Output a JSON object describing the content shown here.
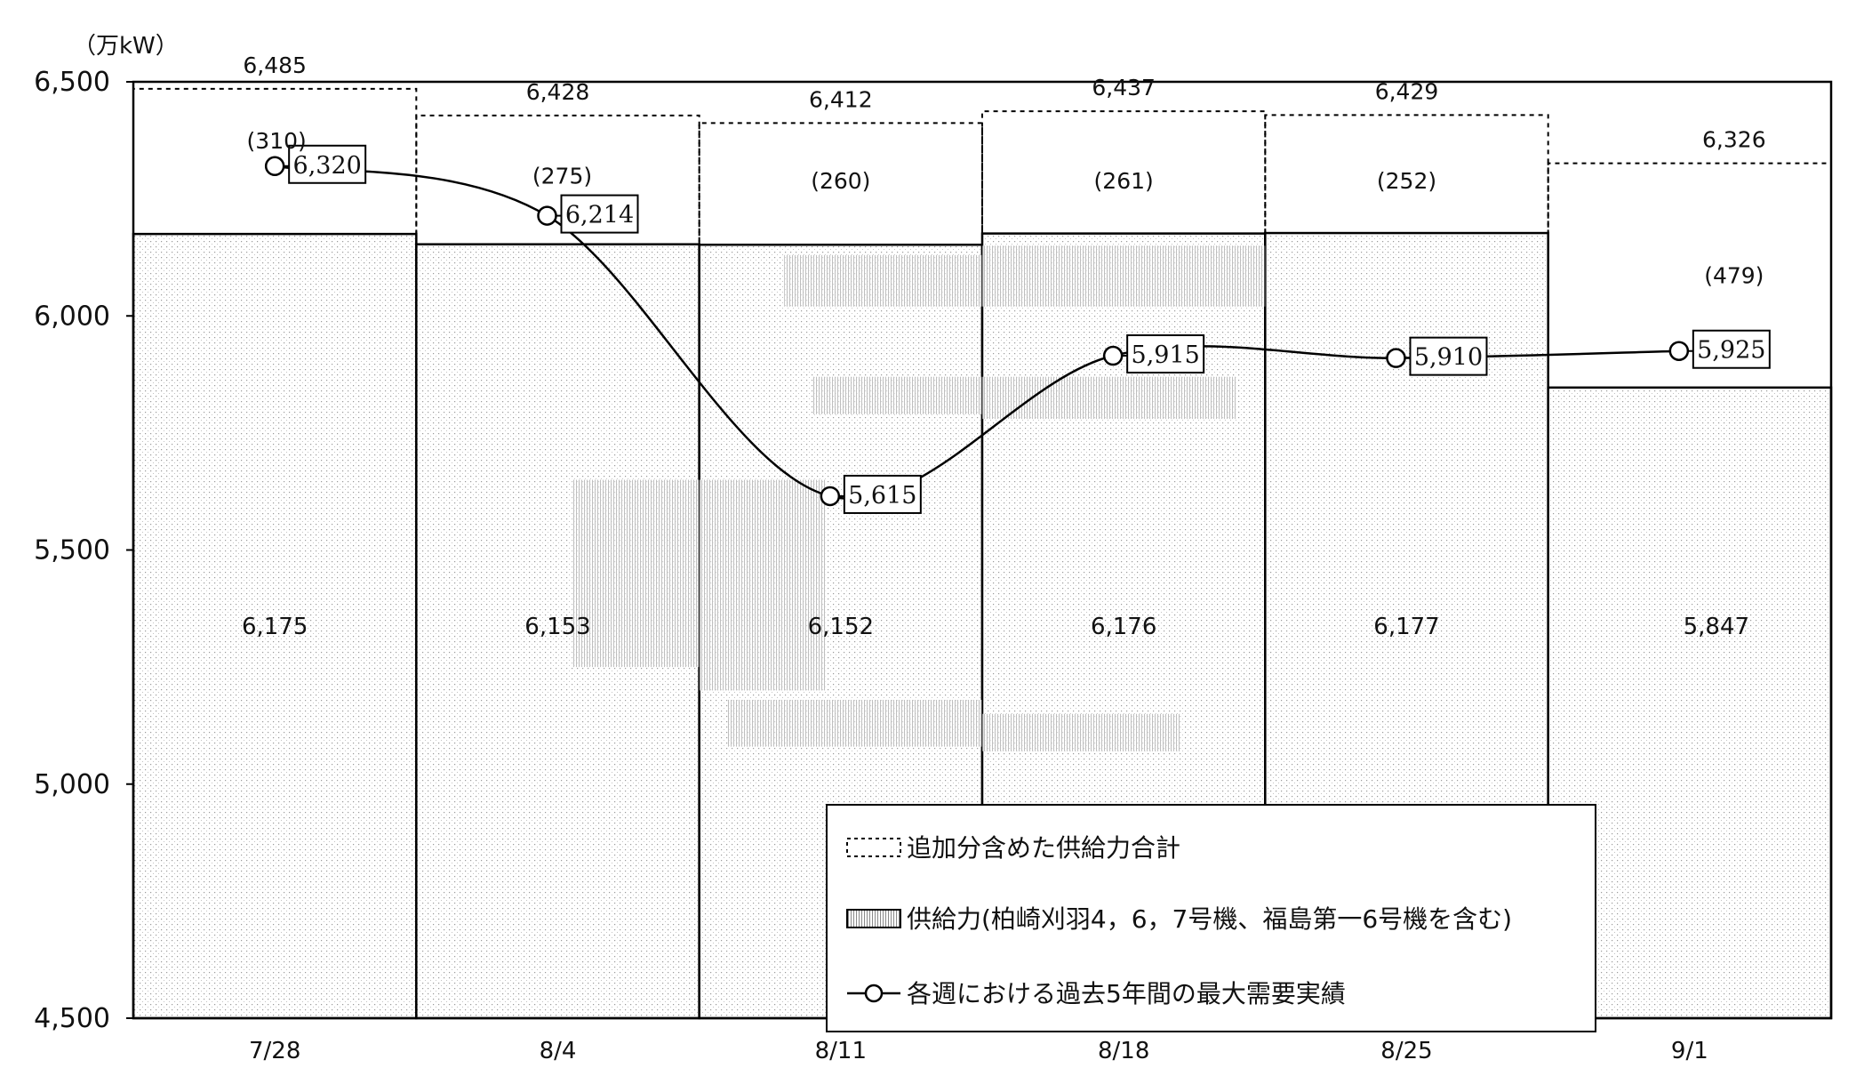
{
  "chart_data": {
    "type": "bar",
    "unit_label": "（万kW）",
    "categories": [
      "7/28",
      "8/4",
      "8/11",
      "8/18",
      "8/25",
      "9/1"
    ],
    "ylim": [
      4500,
      6500
    ],
    "yticks": [
      4500,
      5000,
      5500,
      6000,
      6500
    ],
    "ytick_labels": [
      "4,500",
      "5,000",
      "5,500",
      "6,000",
      "6,500"
    ],
    "supply_values": [
      6175,
      6153,
      6152,
      6176,
      6177,
      5847
    ],
    "supply_labels": [
      "6,175",
      "6,153",
      "6,152",
      "6,176",
      "6,177",
      "5,847"
    ],
    "total_values": [
      6485,
      6428,
      6412,
      6437,
      6429,
      6326
    ],
    "total_labels": [
      "6,485",
      "6,428",
      "6,412",
      "6,437",
      "6,429",
      "6,326"
    ],
    "addition_labels": [
      "(310)",
      "(275)",
      "(260)",
      "(261)",
      "(252)",
      "(479)"
    ],
    "demand_values": [
      6320,
      6214,
      5615,
      5915,
      5910,
      5925
    ],
    "demand_labels": [
      "6,320",
      "6,214",
      "5,615",
      "5,915",
      "5,910",
      "5,925"
    ],
    "legend": [
      "追加分含めた供給力合計",
      "供給力(柏崎刈羽4，6，7号機、福島第一6号機を含む)",
      "各週における過去5年間の最大需要実績"
    ],
    "grid": false,
    "legend_position": "bottom-right"
  }
}
